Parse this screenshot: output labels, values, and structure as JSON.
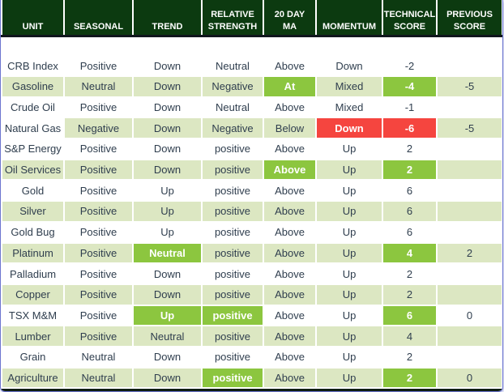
{
  "colors": {
    "header_bg": "#0c3a10",
    "zebra_green": "#dce7c2",
    "bright_green": "#8cc63f",
    "alert_red": "#f5453f",
    "text": "#2f3e4e",
    "border_blue": "#6d76d0",
    "separator": "#10161d",
    "footer": "#0e1d12"
  },
  "chart_data": {
    "type": "table",
    "columns": [
      {
        "id": "unit",
        "label": "UNIT"
      },
      {
        "id": "seasonal",
        "label": "SEASONAL"
      },
      {
        "id": "trend",
        "label": "TREND"
      },
      {
        "id": "relative-strength",
        "label": "RELATIVE\nSTRENGTH"
      },
      {
        "id": "20-day-ma",
        "label": "20 DAY\nMA"
      },
      {
        "id": "momentum",
        "label": "MOMENTUM"
      },
      {
        "id": "technical-score",
        "label": "TECHNICAL\nSCORE"
      },
      {
        "id": "previous-score",
        "label": "PREVIOUS\nSCORE"
      }
    ],
    "rows": [
      {
        "zebra": "white",
        "cells": [
          {
            "text": "CRB Index"
          },
          {
            "text": "Positive"
          },
          {
            "text": "Down"
          },
          {
            "text": "Neutral"
          },
          {
            "text": "Above"
          },
          {
            "text": "Down"
          },
          {
            "text": "-2"
          },
          {
            "text": ""
          }
        ]
      },
      {
        "zebra": "green",
        "cells": [
          {
            "text": "Gasoline"
          },
          {
            "text": "Neutral"
          },
          {
            "text": "Down"
          },
          {
            "text": "Negative"
          },
          {
            "text": "At",
            "style": "bright"
          },
          {
            "text": "Mixed"
          },
          {
            "text": "-4",
            "style": "bright"
          },
          {
            "text": "-5"
          }
        ]
      },
      {
        "zebra": "white",
        "cells": [
          {
            "text": "Crude Oil"
          },
          {
            "text": "Positive"
          },
          {
            "text": "Down"
          },
          {
            "text": "Neutral"
          },
          {
            "text": "Above"
          },
          {
            "text": "Mixed"
          },
          {
            "text": "-1"
          },
          {
            "text": ""
          }
        ]
      },
      {
        "zebra": "green",
        "cells": [
          {
            "text": "Natural Gas",
            "bg": "white"
          },
          {
            "text": "Negative"
          },
          {
            "text": "Down"
          },
          {
            "text": "Negative"
          },
          {
            "text": "Below"
          },
          {
            "text": "Down",
            "style": "red"
          },
          {
            "text": "-6",
            "style": "red"
          },
          {
            "text": "-5"
          }
        ]
      },
      {
        "zebra": "white",
        "cells": [
          {
            "text": "S&P Energy"
          },
          {
            "text": "Positive"
          },
          {
            "text": "Down"
          },
          {
            "text": "positive"
          },
          {
            "text": "Above"
          },
          {
            "text": "Up"
          },
          {
            "text": "2"
          },
          {
            "text": ""
          }
        ]
      },
      {
        "zebra": "green",
        "cells": [
          {
            "text": "Oil Services"
          },
          {
            "text": "Positive"
          },
          {
            "text": "Down"
          },
          {
            "text": "positive"
          },
          {
            "text": "Above",
            "style": "bright"
          },
          {
            "text": "Up"
          },
          {
            "text": "2",
            "style": "bright"
          },
          {
            "text": ""
          }
        ]
      },
      {
        "zebra": "white",
        "cells": [
          {
            "text": "Gold"
          },
          {
            "text": "Positive"
          },
          {
            "text": "Up"
          },
          {
            "text": "positive"
          },
          {
            "text": "Above"
          },
          {
            "text": "Up"
          },
          {
            "text": "6"
          },
          {
            "text": ""
          }
        ]
      },
      {
        "zebra": "green",
        "cells": [
          {
            "text": "Silver"
          },
          {
            "text": "Positive"
          },
          {
            "text": "Up"
          },
          {
            "text": "positive"
          },
          {
            "text": "Above"
          },
          {
            "text": "Up"
          },
          {
            "text": "6"
          },
          {
            "text": ""
          }
        ]
      },
      {
        "zebra": "white",
        "cells": [
          {
            "text": "Gold Bug"
          },
          {
            "text": "Positive"
          },
          {
            "text": "Up"
          },
          {
            "text": "positive"
          },
          {
            "text": "Above"
          },
          {
            "text": "Up"
          },
          {
            "text": "6"
          },
          {
            "text": ""
          }
        ]
      },
      {
        "zebra": "green",
        "cells": [
          {
            "text": "Platinum"
          },
          {
            "text": "Positive"
          },
          {
            "text": "Neutral",
            "style": "bright"
          },
          {
            "text": "positive"
          },
          {
            "text": "Above"
          },
          {
            "text": "Up"
          },
          {
            "text": "4",
            "style": "bright"
          },
          {
            "text": "2"
          }
        ]
      },
      {
        "zebra": "white",
        "cells": [
          {
            "text": "Palladium"
          },
          {
            "text": "Positive"
          },
          {
            "text": "Down"
          },
          {
            "text": "positive"
          },
          {
            "text": "Above"
          },
          {
            "text": "Up"
          },
          {
            "text": "2"
          },
          {
            "text": ""
          }
        ]
      },
      {
        "zebra": "green",
        "cells": [
          {
            "text": "Copper"
          },
          {
            "text": "Positive"
          },
          {
            "text": "Down"
          },
          {
            "text": "positive"
          },
          {
            "text": "Above"
          },
          {
            "text": "Up"
          },
          {
            "text": "2"
          },
          {
            "text": ""
          }
        ]
      },
      {
        "zebra": "white",
        "cells": [
          {
            "text": "TSX M&M"
          },
          {
            "text": "Positive"
          },
          {
            "text": "Up",
            "style": "bright"
          },
          {
            "text": "positive",
            "style": "bright"
          },
          {
            "text": "Above"
          },
          {
            "text": "Up"
          },
          {
            "text": "6",
            "style": "bright"
          },
          {
            "text": "0"
          }
        ]
      },
      {
        "zebra": "green",
        "cells": [
          {
            "text": "Lumber"
          },
          {
            "text": "Positive"
          },
          {
            "text": "Neutral"
          },
          {
            "text": "positive"
          },
          {
            "text": "Above"
          },
          {
            "text": "Up"
          },
          {
            "text": "4"
          },
          {
            "text": ""
          }
        ]
      },
      {
        "zebra": "white",
        "cells": [
          {
            "text": "Grain"
          },
          {
            "text": "Neutral"
          },
          {
            "text": "Down"
          },
          {
            "text": "positive"
          },
          {
            "text": "Above"
          },
          {
            "text": "Up"
          },
          {
            "text": "2"
          },
          {
            "text": ""
          }
        ]
      },
      {
        "zebra": "green",
        "cells": [
          {
            "text": "Agriculture"
          },
          {
            "text": "Neutral"
          },
          {
            "text": "Down"
          },
          {
            "text": "positive",
            "style": "bright"
          },
          {
            "text": "Above"
          },
          {
            "text": "Up"
          },
          {
            "text": "2",
            "style": "bright"
          },
          {
            "text": "0"
          }
        ]
      }
    ]
  }
}
